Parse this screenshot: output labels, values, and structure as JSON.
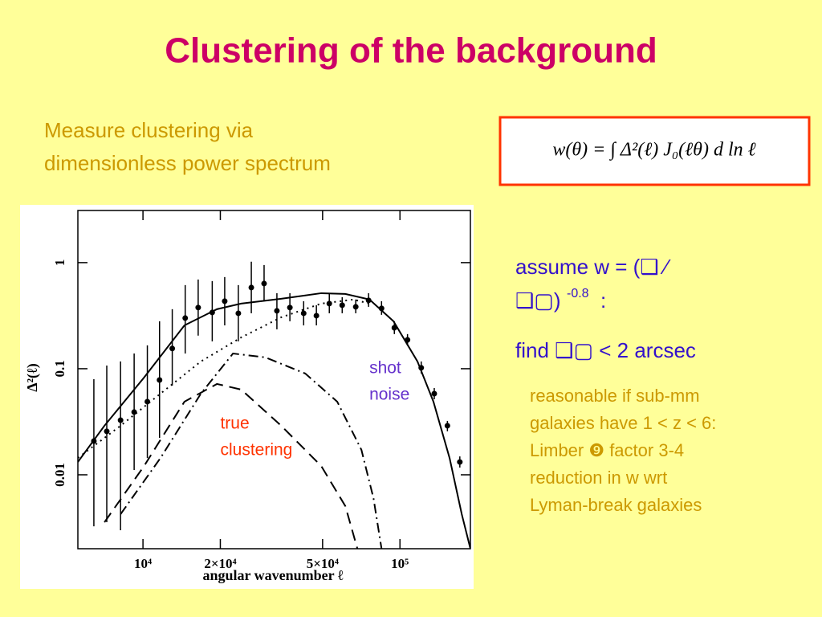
{
  "title": "Clustering of the background",
  "intro": [
    "Measure clustering via",
    "dimensionless power spectrum"
  ],
  "formula": "w(θ) = ∫ Δ²(ℓ) J₀(ℓθ) d ln ℓ",
  "assume": {
    "line1": "assume w = (❑    ⁄",
    "line2": "❑▢)",
    "exponent": "-0.8",
    "end": " :"
  },
  "find": "find  ❑▢  < 2 arcsec",
  "note": [
    "reasonable if sub-mm",
    "galaxies have 1 < z < 6:",
    "Limber ❾ factor 3-4",
    "reduction in w wrt",
    "Lyman-break galaxies"
  ],
  "chart_data": {
    "type": "scatter",
    "xlabel": "angular wavenumber ℓ",
    "ylabel": "Δ²(ℓ)",
    "xlog": true,
    "ylog": true,
    "xlim": [
      5580,
      188000
    ],
    "ylim": [
      0.00201,
      3.1
    ],
    "xticks": [
      {
        "value": 10000,
        "label": "10⁴"
      },
      {
        "value": 20000,
        "label": "2×10⁴"
      },
      {
        "value": 50000,
        "label": "5×10⁴"
      },
      {
        "value": 100000,
        "label": "10⁵"
      }
    ],
    "yticks": [
      1,
      0.1,
      0.01
    ],
    "annotations": [
      {
        "lines": [
          "shot",
          "noise"
        ],
        "color": "#6633cc",
        "x": 76000,
        "y": 0.1
      },
      {
        "lines": [
          "true",
          "clustering"
        ],
        "color": "#ff3300",
        "x": 20000,
        "y": 0.03
      }
    ],
    "points": {
      "color": "#000000",
      "x": [
        6440,
        7230,
        8180,
        9240,
        10400,
        11600,
        13000,
        14600,
        16400,
        18600,
        20800,
        23500,
        26400,
        29600,
        33200,
        37300,
        42200,
        47300,
        53100,
        59600,
        67300,
        75500,
        84800,
        95100,
        107000,
        121000,
        136000,
        153000,
        171000
      ],
      "values": [
        0.0208,
        0.0257,
        0.0327,
        0.039,
        0.0489,
        0.0783,
        0.155,
        0.3,
        0.377,
        0.339,
        0.433,
        0.333,
        0.582,
        0.635,
        0.351,
        0.377,
        0.333,
        0.316,
        0.411,
        0.397,
        0.383,
        0.441,
        0.37,
        0.243,
        0.187,
        0.102,
        0.0582,
        0.029,
        0.0132
      ],
      "upper": [
        0.0797,
        0.107,
        0.117,
        0.139,
        0.166,
        0.28,
        0.364,
        0.614,
        0.693,
        0.67,
        0.731,
        0.614,
        1.02,
        0.949,
        0.515,
        0.515,
        0.433,
        0.397,
        0.515,
        0.472,
        0.449,
        0.515,
        0.433,
        0.28,
        0.212,
        0.117,
        0.0658,
        0.0322,
        0.0149
      ],
      "lower": [
        0.00327,
        0.00357,
        0.003,
        0.0111,
        0.0144,
        0.0223,
        0.0693,
        0.139,
        0.205,
        0.181,
        0.256,
        0.181,
        0.333,
        0.433,
        0.235,
        0.28,
        0.256,
        0.256,
        0.333,
        0.333,
        0.333,
        0.383,
        0.322,
        0.212,
        0.166,
        0.0901,
        0.0515,
        0.0257,
        0.0117
      ]
    },
    "lines": [
      {
        "dash": "solid",
        "color": "#000000",
        "x": [
          5580,
          7080,
          10100,
          14500,
          19400,
          24100,
          34500,
          49400,
          61300,
          76100,
          94400,
          117000,
          135000,
          156000,
          174000,
          188000
        ],
        "values": [
          0.0132,
          0.029,
          0.0826,
          0.256,
          0.364,
          0.411,
          0.456,
          0.515,
          0.507,
          0.449,
          0.28,
          0.117,
          0.0489,
          0.0144,
          0.00425,
          0.00201
        ]
      },
      {
        "dash": "dotted",
        "color": "#000000",
        "x": [
          5580,
          8180,
          11700,
          16800,
          24100,
          34500,
          49400,
          65900,
          76100
        ],
        "values": [
          0.0144,
          0.029,
          0.0582,
          0.117,
          0.197,
          0.305,
          0.411,
          0.449,
          0.411
        ]
      },
      {
        "dash": "dash-dot",
        "color": "#000000",
        "x": [
          8180,
          11700,
          16800,
          22400,
          29900,
          42800,
          57000,
          70800,
          78900,
          84800
        ],
        "values": [
          0.00425,
          0.0144,
          0.0582,
          0.139,
          0.128,
          0.0901,
          0.0489,
          0.0172,
          0.006,
          0.00201
        ]
      },
      {
        "dash": "dashed",
        "color": "#000000",
        "x": [
          7080,
          10100,
          14500,
          19400,
          24100,
          34500,
          49400,
          61300,
          68300
        ],
        "values": [
          0.00357,
          0.0121,
          0.0489,
          0.0718,
          0.0636,
          0.029,
          0.0121,
          0.00507,
          0.00201
        ]
      }
    ]
  }
}
